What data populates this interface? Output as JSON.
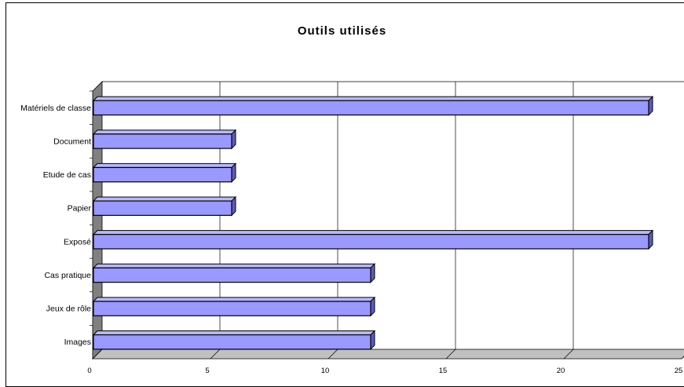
{
  "chart_data": {
    "type": "bar",
    "orientation": "horizontal",
    "title": "Outils utilisés",
    "categories": [
      "Matériels de classe",
      "Document",
      "Etude de cas",
      "Papier",
      "Exposé",
      "Cas pratique",
      "Jeux de rôle",
      "Images"
    ],
    "values": [
      23.6,
      5.9,
      5.9,
      5.9,
      23.6,
      11.8,
      11.8,
      11.8
    ],
    "xticks": [
      "0",
      "5",
      "10",
      "15",
      "20",
      "25"
    ],
    "xlim": [
      0,
      25
    ],
    "xlabel": "",
    "ylabel": "",
    "grid": "vertical",
    "legend": "none",
    "colors": {
      "bar_front": "#9999ff",
      "bar_top": "#b8b8ff",
      "bar_side": "#5c5cc0",
      "wall": "#808080",
      "floor": "#c0c0c0"
    }
  }
}
